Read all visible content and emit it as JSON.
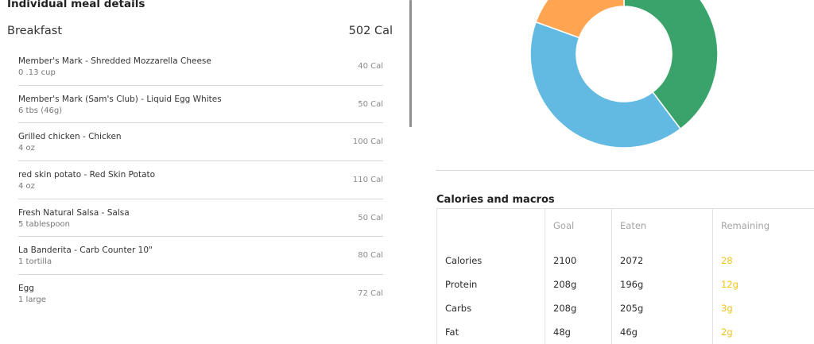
{
  "left": {
    "section_title": "Individual meal details",
    "meal": {
      "name": "Breakfast",
      "calories": "502 Cal"
    },
    "foods": [
      {
        "name": "Member's Mark - Shredded Mozzarella Cheese",
        "serving": "0 .13 cup",
        "calories": "40 Cal"
      },
      {
        "name": "Member's Mark (Sam's Club) - Liquid Egg Whites",
        "serving": "6 tbs (46g)",
        "calories": "50 Cal"
      },
      {
        "name": "Grilled chicken - Chicken",
        "serving": "4 oz",
        "calories": "100 Cal"
      },
      {
        "name": "red skin potato - Red Skin Potato",
        "serving": "4 oz",
        "calories": "110 Cal"
      },
      {
        "name": "Fresh Natural Salsa - Salsa",
        "serving": "5 tablespoon",
        "calories": "50 Cal"
      },
      {
        "name": "La Banderita - Carb Counter 10\"",
        "serving": "1 tortilla",
        "calories": "80 Cal"
      },
      {
        "name": "Egg",
        "serving": "1 large",
        "calories": "72 Cal"
      }
    ]
  },
  "donut": {
    "segments": [
      {
        "color": "#3aa36b",
        "start_deg": 0,
        "end_deg": 143
      },
      {
        "color": "#62b9e2",
        "start_deg": 143,
        "end_deg": 290
      },
      {
        "color": "#ffa552",
        "start_deg": 290,
        "end_deg": 360
      }
    ]
  },
  "macros": {
    "title": "Calories and macros",
    "headers": [
      "",
      "Goal",
      "Eaten",
      "Remaining"
    ],
    "rows": [
      {
        "label": "Calories",
        "goal": "2100",
        "eaten": "2072",
        "remaining": "28"
      },
      {
        "label": "Protein",
        "goal": "208g",
        "eaten": "196g",
        "remaining": "12g"
      },
      {
        "label": "Carbs",
        "goal": "208g",
        "eaten": "205g",
        "remaining": "3g"
      },
      {
        "label": "Fat",
        "goal": "48g",
        "eaten": "46g",
        "remaining": "2g"
      }
    ],
    "remaining_color": "#f0c419"
  }
}
